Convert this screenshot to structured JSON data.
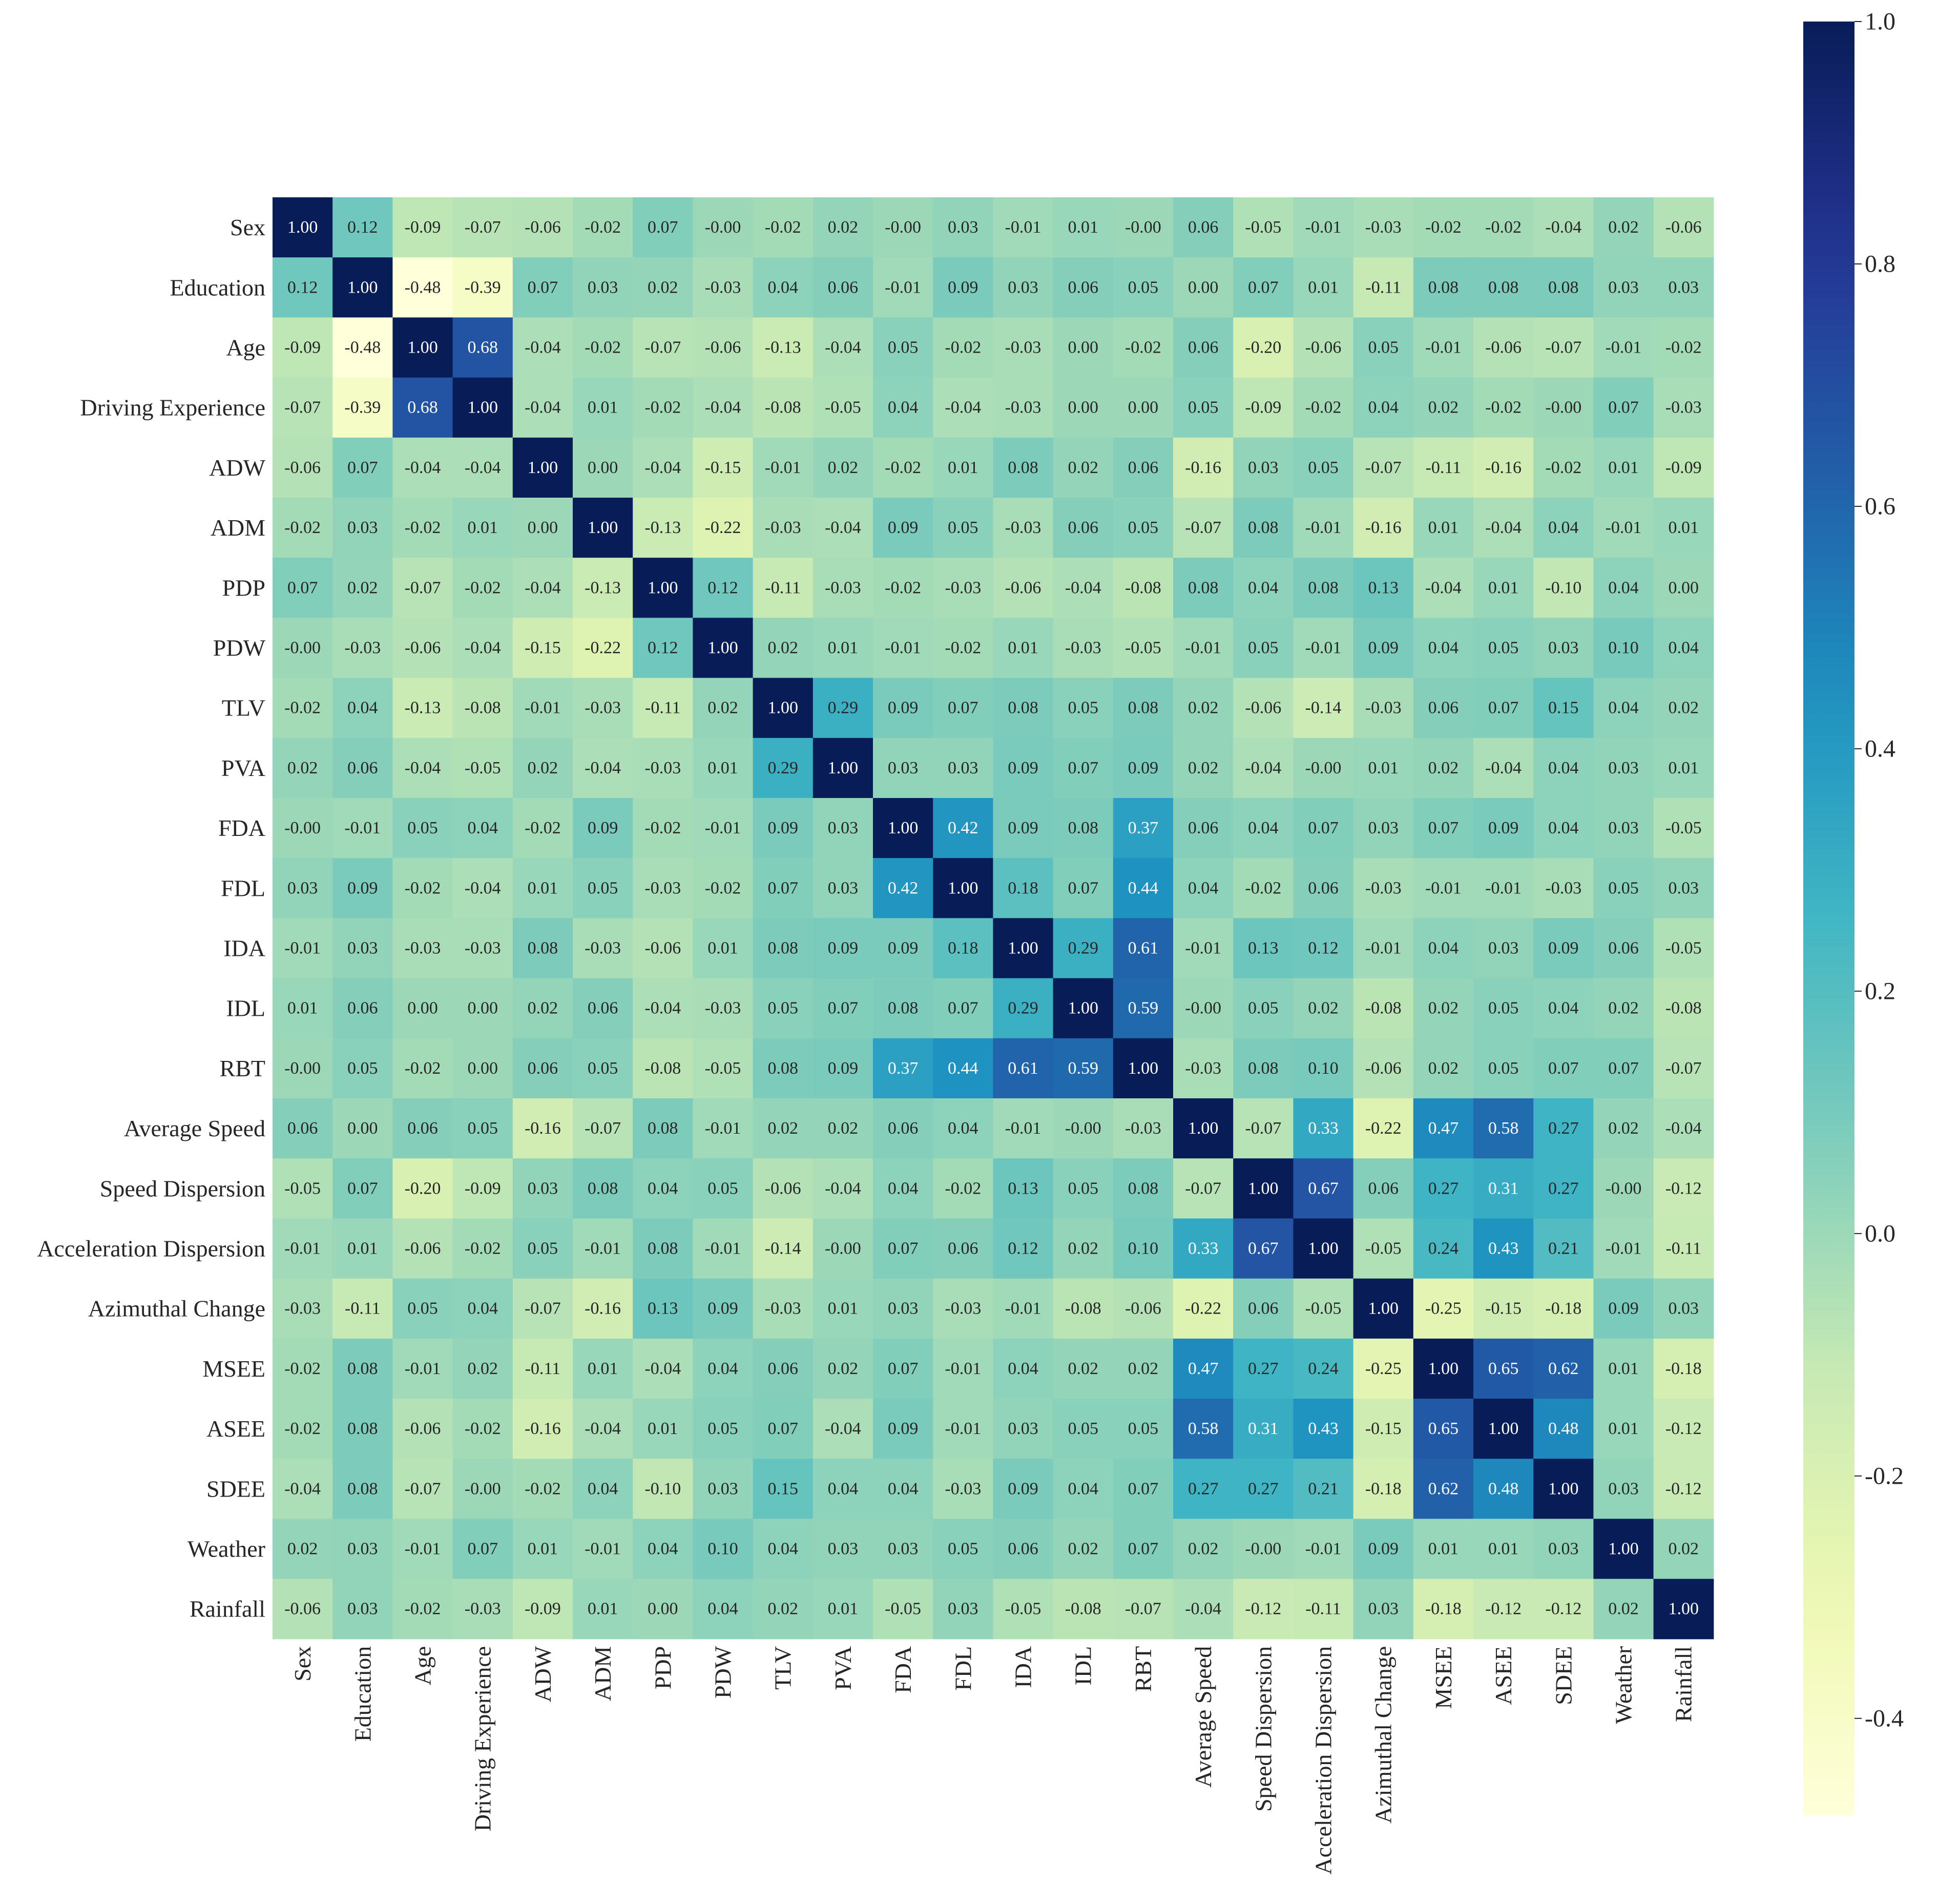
{
  "chart_data": {
    "type": "heatmap",
    "title": "",
    "xlabel": "",
    "ylabel": "",
    "colormap": "YlGnBu",
    "vmin": -0.48,
    "vmax": 1.0,
    "labels": [
      "Sex",
      "Education",
      "Age",
      "Driving Experience",
      "ADW",
      "ADM",
      "PDP",
      "PDW",
      "TLV",
      "PVA",
      "FDA",
      "FDL",
      "IDA",
      "IDL",
      "RBT",
      "Average Speed",
      "Speed Dispersion",
      "Acceleration Dispersion",
      "Azimuthal Change",
      "MSEE",
      "ASEE",
      "SDEE",
      "Weather",
      "Rainfall"
    ],
    "matrix": [
      [
        "1.00",
        "0.12",
        "-0.09",
        "-0.07",
        "-0.06",
        "-0.02",
        "0.07",
        "-0.00",
        "-0.02",
        "0.02",
        "-0.00",
        "0.03",
        "-0.01",
        "0.01",
        "-0.00",
        "0.06",
        "-0.05",
        "-0.01",
        "-0.03",
        "-0.02",
        "-0.02",
        "-0.04",
        "0.02",
        "-0.06"
      ],
      [
        "0.12",
        "1.00",
        "-0.48",
        "-0.39",
        "0.07",
        "0.03",
        "0.02",
        "-0.03",
        "0.04",
        "0.06",
        "-0.01",
        "0.09",
        "0.03",
        "0.06",
        "0.05",
        "0.00",
        "0.07",
        "0.01",
        "-0.11",
        "0.08",
        "0.08",
        "0.08",
        "0.03",
        "0.03"
      ],
      [
        "-0.09",
        "-0.48",
        "1.00",
        "0.68",
        "-0.04",
        "-0.02",
        "-0.07",
        "-0.06",
        "-0.13",
        "-0.04",
        "0.05",
        "-0.02",
        "-0.03",
        "0.00",
        "-0.02",
        "0.06",
        "-0.20",
        "-0.06",
        "0.05",
        "-0.01",
        "-0.06",
        "-0.07",
        "-0.01",
        "-0.02"
      ],
      [
        "-0.07",
        "-0.39",
        "0.68",
        "1.00",
        "-0.04",
        "0.01",
        "-0.02",
        "-0.04",
        "-0.08",
        "-0.05",
        "0.04",
        "-0.04",
        "-0.03",
        "0.00",
        "0.00",
        "0.05",
        "-0.09",
        "-0.02",
        "0.04",
        "0.02",
        "-0.02",
        "-0.00",
        "0.07",
        "-0.03"
      ],
      [
        "-0.06",
        "0.07",
        "-0.04",
        "-0.04",
        "1.00",
        "0.00",
        "-0.04",
        "-0.15",
        "-0.01",
        "0.02",
        "-0.02",
        "0.01",
        "0.08",
        "0.02",
        "0.06",
        "-0.16",
        "0.03",
        "0.05",
        "-0.07",
        "-0.11",
        "-0.16",
        "-0.02",
        "0.01",
        "-0.09"
      ],
      [
        "-0.02",
        "0.03",
        "-0.02",
        "0.01",
        "0.00",
        "1.00",
        "-0.13",
        "-0.22",
        "-0.03",
        "-0.04",
        "0.09",
        "0.05",
        "-0.03",
        "0.06",
        "0.05",
        "-0.07",
        "0.08",
        "-0.01",
        "-0.16",
        "0.01",
        "-0.04",
        "0.04",
        "-0.01",
        "0.01"
      ],
      [
        "0.07",
        "0.02",
        "-0.07",
        "-0.02",
        "-0.04",
        "-0.13",
        "1.00",
        "0.12",
        "-0.11",
        "-0.03",
        "-0.02",
        "-0.03",
        "-0.06",
        "-0.04",
        "-0.08",
        "0.08",
        "0.04",
        "0.08",
        "0.13",
        "-0.04",
        "0.01",
        "-0.10",
        "0.04",
        "0.00"
      ],
      [
        "-0.00",
        "-0.03",
        "-0.06",
        "-0.04",
        "-0.15",
        "-0.22",
        "0.12",
        "1.00",
        "0.02",
        "0.01",
        "-0.01",
        "-0.02",
        "0.01",
        "-0.03",
        "-0.05",
        "-0.01",
        "0.05",
        "-0.01",
        "0.09",
        "0.04",
        "0.05",
        "0.03",
        "0.10",
        "0.04"
      ],
      [
        "-0.02",
        "0.04",
        "-0.13",
        "-0.08",
        "-0.01",
        "-0.03",
        "-0.11",
        "0.02",
        "1.00",
        "0.29",
        "0.09",
        "0.07",
        "0.08",
        "0.05",
        "0.08",
        "0.02",
        "-0.06",
        "-0.14",
        "-0.03",
        "0.06",
        "0.07",
        "0.15",
        "0.04",
        "0.02"
      ],
      [
        "0.02",
        "0.06",
        "-0.04",
        "-0.05",
        "0.02",
        "-0.04",
        "-0.03",
        "0.01",
        "0.29",
        "1.00",
        "0.03",
        "0.03",
        "0.09",
        "0.07",
        "0.09",
        "0.02",
        "-0.04",
        "-0.00",
        "0.01",
        "0.02",
        "-0.04",
        "0.04",
        "0.03",
        "0.01"
      ],
      [
        "-0.00",
        "-0.01",
        "0.05",
        "0.04",
        "-0.02",
        "0.09",
        "-0.02",
        "-0.01",
        "0.09",
        "0.03",
        "1.00",
        "0.42",
        "0.09",
        "0.08",
        "0.37",
        "0.06",
        "0.04",
        "0.07",
        "0.03",
        "0.07",
        "0.09",
        "0.04",
        "0.03",
        "-0.05"
      ],
      [
        "0.03",
        "0.09",
        "-0.02",
        "-0.04",
        "0.01",
        "0.05",
        "-0.03",
        "-0.02",
        "0.07",
        "0.03",
        "0.42",
        "1.00",
        "0.18",
        "0.07",
        "0.44",
        "0.04",
        "-0.02",
        "0.06",
        "-0.03",
        "-0.01",
        "-0.01",
        "-0.03",
        "0.05",
        "0.03"
      ],
      [
        "-0.01",
        "0.03",
        "-0.03",
        "-0.03",
        "0.08",
        "-0.03",
        "-0.06",
        "0.01",
        "0.08",
        "0.09",
        "0.09",
        "0.18",
        "1.00",
        "0.29",
        "0.61",
        "-0.01",
        "0.13",
        "0.12",
        "-0.01",
        "0.04",
        "0.03",
        "0.09",
        "0.06",
        "-0.05"
      ],
      [
        "0.01",
        "0.06",
        "0.00",
        "0.00",
        "0.02",
        "0.06",
        "-0.04",
        "-0.03",
        "0.05",
        "0.07",
        "0.08",
        "0.07",
        "0.29",
        "1.00",
        "0.59",
        "-0.00",
        "0.05",
        "0.02",
        "-0.08",
        "0.02",
        "0.05",
        "0.04",
        "0.02",
        "-0.08"
      ],
      [
        "-0.00",
        "0.05",
        "-0.02",
        "0.00",
        "0.06",
        "0.05",
        "-0.08",
        "-0.05",
        "0.08",
        "0.09",
        "0.37",
        "0.44",
        "0.61",
        "0.59",
        "1.00",
        "-0.03",
        "0.08",
        "0.10",
        "-0.06",
        "0.02",
        "0.05",
        "0.07",
        "0.07",
        "-0.07"
      ],
      [
        "0.06",
        "0.00",
        "0.06",
        "0.05",
        "-0.16",
        "-0.07",
        "0.08",
        "-0.01",
        "0.02",
        "0.02",
        "0.06",
        "0.04",
        "-0.01",
        "-0.00",
        "-0.03",
        "1.00",
        "-0.07",
        "0.33",
        "-0.22",
        "0.47",
        "0.58",
        "0.27",
        "0.02",
        "-0.04"
      ],
      [
        "-0.05",
        "0.07",
        "-0.20",
        "-0.09",
        "0.03",
        "0.08",
        "0.04",
        "0.05",
        "-0.06",
        "-0.04",
        "0.04",
        "-0.02",
        "0.13",
        "0.05",
        "0.08",
        "-0.07",
        "1.00",
        "0.67",
        "0.06",
        "0.27",
        "0.31",
        "0.27",
        "-0.00",
        "-0.12"
      ],
      [
        "-0.01",
        "0.01",
        "-0.06",
        "-0.02",
        "0.05",
        "-0.01",
        "0.08",
        "-0.01",
        "-0.14",
        "-0.00",
        "0.07",
        "0.06",
        "0.12",
        "0.02",
        "0.10",
        "0.33",
        "0.67",
        "1.00",
        "-0.05",
        "0.24",
        "0.43",
        "0.21",
        "-0.01",
        "-0.11"
      ],
      [
        "-0.03",
        "-0.11",
        "0.05",
        "0.04",
        "-0.07",
        "-0.16",
        "0.13",
        "0.09",
        "-0.03",
        "0.01",
        "0.03",
        "-0.03",
        "-0.01",
        "-0.08",
        "-0.06",
        "-0.22",
        "0.06",
        "-0.05",
        "1.00",
        "-0.25",
        "-0.15",
        "-0.18",
        "0.09",
        "0.03"
      ],
      [
        "-0.02",
        "0.08",
        "-0.01",
        "0.02",
        "-0.11",
        "0.01",
        "-0.04",
        "0.04",
        "0.06",
        "0.02",
        "0.07",
        "-0.01",
        "0.04",
        "0.02",
        "0.02",
        "0.47",
        "0.27",
        "0.24",
        "-0.25",
        "1.00",
        "0.65",
        "0.62",
        "0.01",
        "-0.18"
      ],
      [
        "-0.02",
        "0.08",
        "-0.06",
        "-0.02",
        "-0.16",
        "-0.04",
        "0.01",
        "0.05",
        "0.07",
        "-0.04",
        "0.09",
        "-0.01",
        "0.03",
        "0.05",
        "0.05",
        "0.58",
        "0.31",
        "0.43",
        "-0.15",
        "0.65",
        "1.00",
        "0.48",
        "0.01",
        "-0.12"
      ],
      [
        "-0.04",
        "0.08",
        "-0.07",
        "-0.00",
        "-0.02",
        "0.04",
        "-0.10",
        "0.03",
        "0.15",
        "0.04",
        "0.04",
        "-0.03",
        "0.09",
        "0.04",
        "0.07",
        "0.27",
        "0.27",
        "0.21",
        "-0.18",
        "0.62",
        "0.48",
        "1.00",
        "0.03",
        "-0.12"
      ],
      [
        "0.02",
        "0.03",
        "-0.01",
        "0.07",
        "0.01",
        "-0.01",
        "0.04",
        "0.10",
        "0.04",
        "0.03",
        "0.03",
        "0.05",
        "0.06",
        "0.02",
        "0.07",
        "0.02",
        "-0.00",
        "-0.01",
        "0.09",
        "0.01",
        "0.01",
        "0.03",
        "1.00",
        "0.02"
      ],
      [
        "-0.06",
        "0.03",
        "-0.02",
        "-0.03",
        "-0.09",
        "0.01",
        "0.00",
        "0.04",
        "0.02",
        "0.01",
        "-0.05",
        "0.03",
        "-0.05",
        "-0.08",
        "-0.07",
        "-0.04",
        "-0.12",
        "-0.11",
        "0.03",
        "-0.18",
        "-0.12",
        "-0.12",
        "0.02",
        "1.00"
      ]
    ],
    "colorbar": {
      "ticks": [
        "1.0",
        "0.8",
        "0.6",
        "0.4",
        "0.2",
        "0.0",
        "-0.2",
        "-0.4"
      ],
      "range": [
        -0.48,
        1.0
      ]
    }
  }
}
